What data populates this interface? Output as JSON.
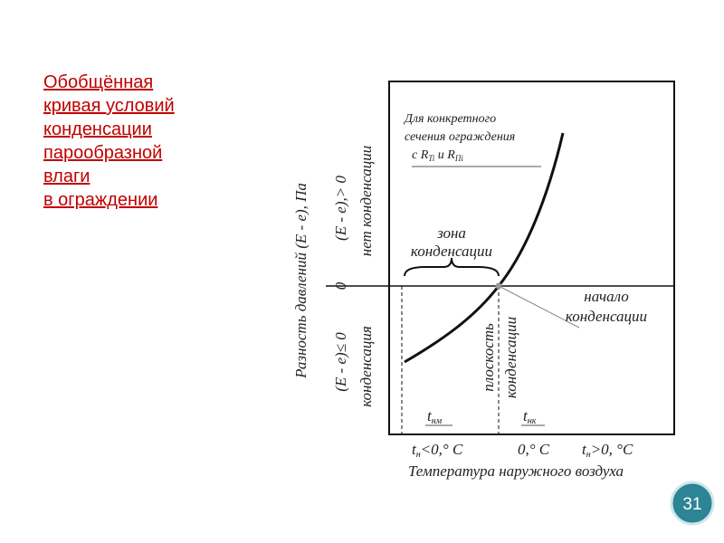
{
  "title": {
    "lines": [
      "Обобщённая",
      "кривая условий",
      "конденсации",
      "парообразной",
      "влаги",
      "в ограждении"
    ]
  },
  "diagram": {
    "y_axis_label": "Разность давлений (Е - е), Па",
    "upper_region": [
      "(Е - е),> 0",
      "нет конденсации"
    ],
    "zero_label": "0",
    "lower_region": [
      "(Е - е)≤ 0",
      "конденсация"
    ],
    "curve_note": {
      "lines": [
        "Для конкретного",
        "сечения ограждения"
      ],
      "last_line": {
        "prefix": "с R",
        "sub1": "Ti",
        "mid": " и R",
        "sub2": "Пi"
      }
    },
    "zone_label": [
      "зона",
      "конденсации"
    ],
    "start_label": [
      "начало",
      "конденсации"
    ],
    "plane_label": [
      "плоскость",
      "конденсации"
    ],
    "t_nm": {
      "base": "t",
      "sub": "нм"
    },
    "t_nk": {
      "base": "t",
      "sub": "нк"
    },
    "x_labels": [
      {
        "base": "t",
        "sub": "н",
        "rest": "<0,° C"
      },
      {
        "rest": "0,° C"
      },
      {
        "base": "t",
        "sub": "н",
        "rest": ">0, °C"
      }
    ],
    "x_axis_label": "Температура наружного воздуха"
  },
  "page_number": "31"
}
